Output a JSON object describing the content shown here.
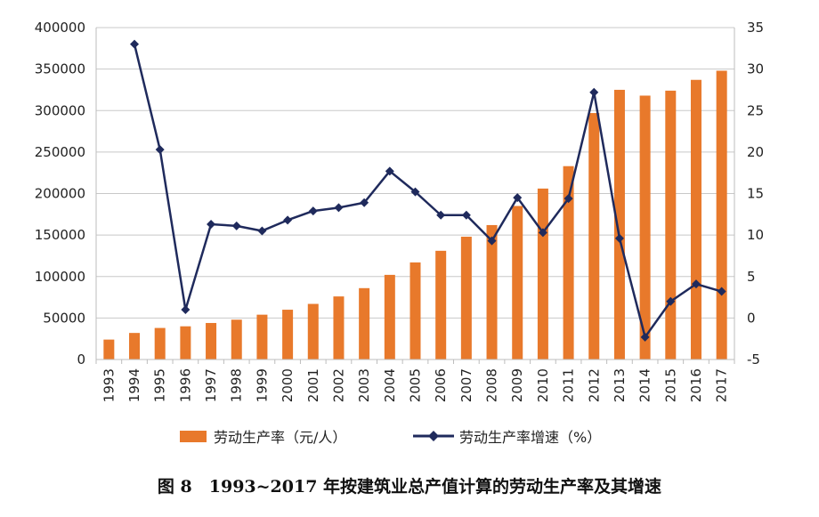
{
  "caption": "图 8　1993~2017 年按建筑业总产值计算的劳动生产率及其增速",
  "chart_data": {
    "type": "bar",
    "categories": [
      "1993",
      "1994",
      "1995",
      "1996",
      "1997",
      "1998",
      "1999",
      "2000",
      "2001",
      "2002",
      "2003",
      "2004",
      "2005",
      "2006",
      "2007",
      "2008",
      "2009",
      "2010",
      "2011",
      "2012",
      "2013",
      "2014",
      "2015",
      "2016",
      "2017"
    ],
    "series": [
      {
        "name": "劳动生产率（元/人）",
        "type": "bar",
        "axis": "left",
        "color": "#E8792B",
        "values": [
          24000,
          32000,
          38000,
          40000,
          44000,
          48000,
          54000,
          60000,
          67000,
          76000,
          86000,
          102000,
          117000,
          131000,
          148000,
          162000,
          185000,
          206000,
          233000,
          297000,
          325000,
          318000,
          324000,
          337000,
          348000
        ]
      },
      {
        "name": "劳动生产率增速（%）",
        "type": "line",
        "axis": "right",
        "color": "#1F2A5C",
        "values": [
          null,
          33.0,
          20.3,
          1.0,
          11.3,
          11.1,
          10.5,
          11.8,
          12.9,
          13.3,
          13.9,
          17.7,
          15.2,
          12.4,
          12.4,
          9.3,
          14.5,
          10.3,
          14.4,
          27.2,
          9.6,
          -2.3,
          2.0,
          4.1,
          3.2
        ]
      }
    ],
    "ylim_left": [
      0,
      400000
    ],
    "yticks_left": [
      "400000",
      "350000",
      "300000",
      "250000",
      "200000",
      "150000",
      "100000",
      "50000",
      "0"
    ],
    "ylim_right": [
      -5,
      35
    ],
    "yticks_right": [
      "35",
      "30",
      "25",
      "20",
      "15",
      "10",
      "5",
      "0",
      "-5"
    ],
    "grid": true,
    "legend_position": "bottom"
  }
}
